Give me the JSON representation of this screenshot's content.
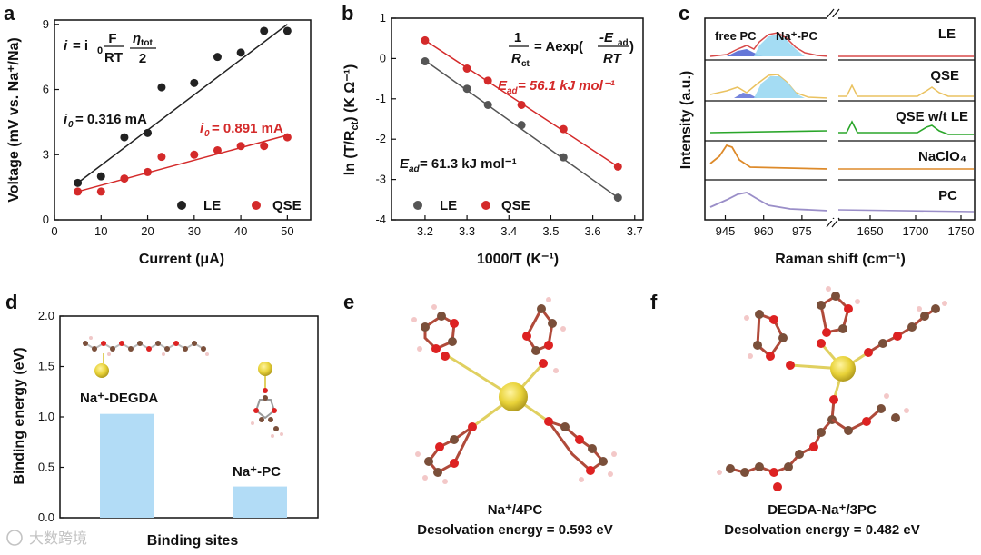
{
  "watermark": "大数跨境",
  "chart_data": [
    {
      "panel": "a",
      "type": "scatter",
      "xlabel": "Current (μA)",
      "ylabel": "Voltage (mV vs. Na+/Na)",
      "xlim": [
        0,
        55
      ],
      "ylim": [
        0,
        9.2
      ],
      "xticks": [
        0,
        10,
        20,
        30,
        40,
        50
      ],
      "yticks": [
        0,
        3,
        6,
        9
      ],
      "equation": "i = i0 F/RT ηtot/2",
      "series": [
        {
          "name": "LE",
          "color": "#222222",
          "x": [
            5,
            10,
            15,
            20,
            23,
            30,
            35,
            40,
            45,
            50
          ],
          "y": [
            1.7,
            2.0,
            3.8,
            4.0,
            6.1,
            6.3,
            7.5,
            7.7,
            8.7,
            8.7
          ],
          "fit": [
            [
              5,
              1.7
            ],
            [
              50,
              9.0
            ]
          ],
          "annotation": "i0= 0.316 mA"
        },
        {
          "name": "QSE",
          "color": "#d42a2a",
          "x": [
            5,
            10,
            15,
            20,
            23,
            30,
            35,
            40,
            45,
            50
          ],
          "y": [
            1.3,
            1.3,
            1.9,
            2.2,
            2.9,
            3.0,
            3.2,
            3.4,
            3.4,
            3.8
          ],
          "fit": [
            [
              5,
              1.3
            ],
            [
              50,
              3.9
            ]
          ],
          "annotation": "i0= 0.891 mA"
        }
      ],
      "legend": [
        "LE",
        "QSE"
      ]
    },
    {
      "panel": "b",
      "type": "scatter",
      "xlabel": "1000/T (K-1)",
      "ylabel": "ln (T/Rct) (K Ω-1)",
      "xlim": [
        3.12,
        3.72
      ],
      "ylim": [
        -4,
        1
      ],
      "xticks": [
        3.2,
        3.3,
        3.4,
        3.5,
        3.6,
        3.7
      ],
      "yticks": [
        1,
        0,
        -1,
        -2,
        -3,
        -4
      ],
      "equation": "1/Rct = Aexp(-Ead/RT)",
      "series": [
        {
          "name": "LE",
          "color": "#555555",
          "x": [
            3.2,
            3.3,
            3.35,
            3.43,
            3.53,
            3.66
          ],
          "y": [
            -0.07,
            -0.75,
            -1.15,
            -1.65,
            -2.45,
            -3.45
          ],
          "fit": [
            [
              3.2,
              -0.05
            ],
            [
              3.66,
              -3.45
            ]
          ],
          "annotation": "Ead = 61.3 kJ mol-1"
        },
        {
          "name": "QSE",
          "color": "#d42a2a",
          "x": [
            3.2,
            3.3,
            3.35,
            3.43,
            3.53,
            3.66
          ],
          "y": [
            0.45,
            -0.25,
            -0.55,
            -1.15,
            -1.75,
            -2.68
          ],
          "fit": [
            [
              3.2,
              0.45
            ],
            [
              3.66,
              -2.68
            ]
          ],
          "annotation": "Ead = 56.1 kJ mol-1"
        }
      ],
      "legend": [
        "LE",
        "QSE"
      ]
    },
    {
      "panel": "c",
      "type": "line",
      "xlabel": "Raman shift (cm-1)",
      "ylabel": "Intensity (a.u.)",
      "xticks_left": [
        945,
        960,
        975
      ],
      "xticks_right": [
        1650,
        1700,
        1750
      ],
      "xlim_left": [
        937,
        985
      ],
      "xlim_right": [
        1615,
        1765
      ],
      "series": [
        {
          "name": "LE",
          "color": "#d84a4a"
        },
        {
          "name": "QSE",
          "color": "#eac260"
        },
        {
          "name": "QSE w/t LE",
          "color": "#2aa62a"
        },
        {
          "name": "NaClO4",
          "color": "#dd8a2a"
        },
        {
          "name": "PC",
          "color": "#9a8ec8"
        }
      ],
      "peak_labels": [
        "free PC",
        "Na+-PC"
      ]
    },
    {
      "panel": "d",
      "type": "bar",
      "xlabel": "Binding sites",
      "ylabel": "Binding energy (eV)",
      "ylim": [
        0,
        2.0
      ],
      "yticks": [
        0.0,
        0.5,
        1.0,
        1.5,
        2.0
      ],
      "categories": [
        "Na+-DEGDA",
        "Na+-PC"
      ],
      "values": [
        1.03,
        0.31
      ],
      "color": "#b2dcf6"
    }
  ],
  "panels": {
    "a": {
      "letter": "a",
      "xlabel": "Current (μA)",
      "ylabel": "Voltage (mV vs. Na⁺/Na)",
      "eq_lhs": "i",
      "eq_mid": "= i",
      "eq_sub": "0",
      "eq_num": "F",
      "eq_den": "RT",
      "eq_eta_num": "η",
      "eq_eta_sub": "tot",
      "eq_eta_den": "2",
      "le_ann_pre": "i",
      "le_ann_sub": "0",
      "le_ann_val": "= 0.316 mA",
      "qse_ann_pre": "i",
      "qse_ann_sub": "0",
      "qse_ann_val": "= 0.891 mA",
      "legend_le": "LE",
      "legend_qse": "QSE"
    },
    "b": {
      "letter": "b",
      "xlabel": "1000/T (K⁻¹)",
      "ylabel": "ln (T/R",
      "ylabel_sub": "ct",
      "ylabel_rest": ") (K Ω⁻¹)",
      "eq_num": "1",
      "eq_den": "R",
      "eq_den_sub": "ct",
      "eq_mid": "= Aexp(",
      "eq_exp_num": "-E",
      "eq_exp_num_sub": "ad",
      "eq_exp_den": "RT",
      "eq_close": ")",
      "qse_ann": "E",
      "qse_ann_sub": "ad",
      "qse_ann_val": " = 56.1 kJ mol⁻¹",
      "le_ann": "E",
      "le_ann_sub": "ad",
      "le_ann_val": " = 61.3 kJ mol⁻¹",
      "legend_le": "LE",
      "legend_qse": "QSE"
    },
    "c": {
      "letter": "c",
      "xlabel": "Raman shift (cm⁻¹)",
      "ylabel": "Intensity (a.u.)",
      "free_pc": "free PC",
      "na_pc": "Na⁺-PC",
      "labels": [
        "LE",
        "QSE",
        "QSE w/t LE",
        "NaClO₄",
        "PC"
      ]
    },
    "d": {
      "letter": "d",
      "xlabel": "Binding sites",
      "ylabel": "Binding energy (eV)",
      "bar1": "Na⁺-DEGDA",
      "bar2": "Na⁺-PC"
    },
    "e": {
      "letter": "e",
      "caption1": "Na⁺/4PC",
      "caption2": "Desolvation energy = 0.593 eV"
    },
    "f": {
      "letter": "f",
      "caption1": "DEGDA-Na⁺/3PC",
      "caption2": "Desolvation energy = 0.482 eV"
    }
  }
}
